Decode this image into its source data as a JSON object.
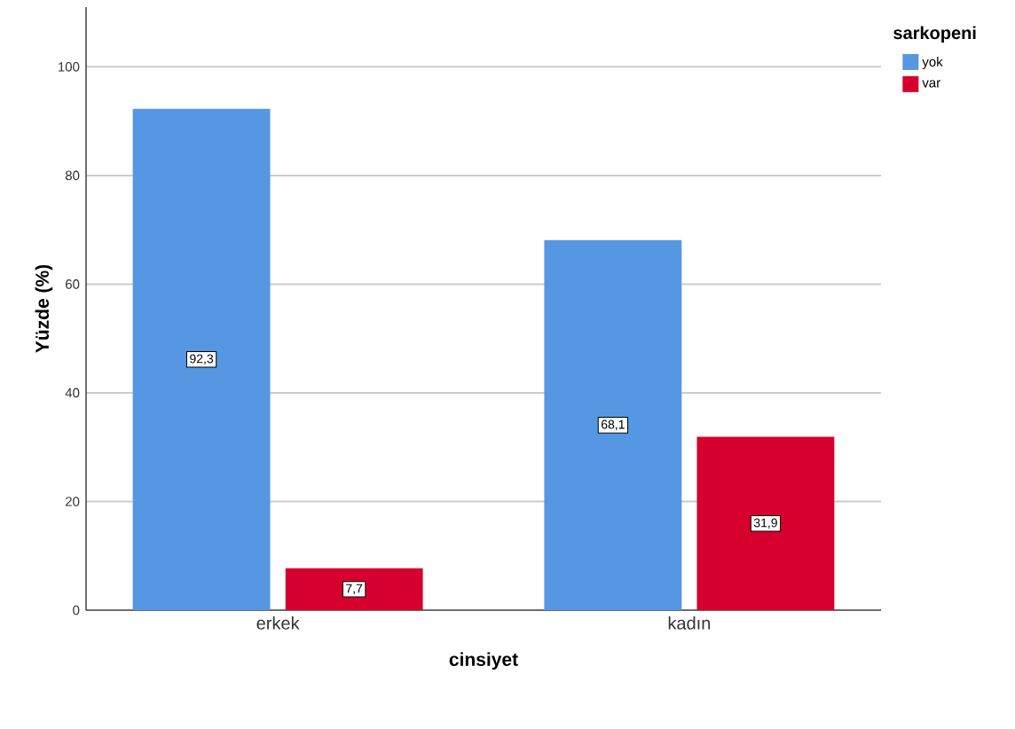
{
  "chart_data": {
    "type": "bar",
    "xlabel": "cinsiyet",
    "ylabel": "Yüzde (%)",
    "legend_title": "sarkopeni",
    "categories": [
      "erkek",
      "kadın"
    ],
    "series": [
      {
        "name": "yok",
        "color": "#5597e3",
        "values": [
          92.3,
          68.1
        ],
        "value_labels": [
          "92,3",
          "68,1"
        ]
      },
      {
        "name": "var",
        "color": "#d6002f",
        "values": [
          7.7,
          31.9
        ],
        "value_labels": [
          "7,7",
          "31,9"
        ]
      }
    ],
    "ylim": [
      0,
      111
    ],
    "yticks": [
      0,
      20,
      40,
      60,
      80,
      100
    ],
    "grid": "y",
    "legend": "top right"
  }
}
